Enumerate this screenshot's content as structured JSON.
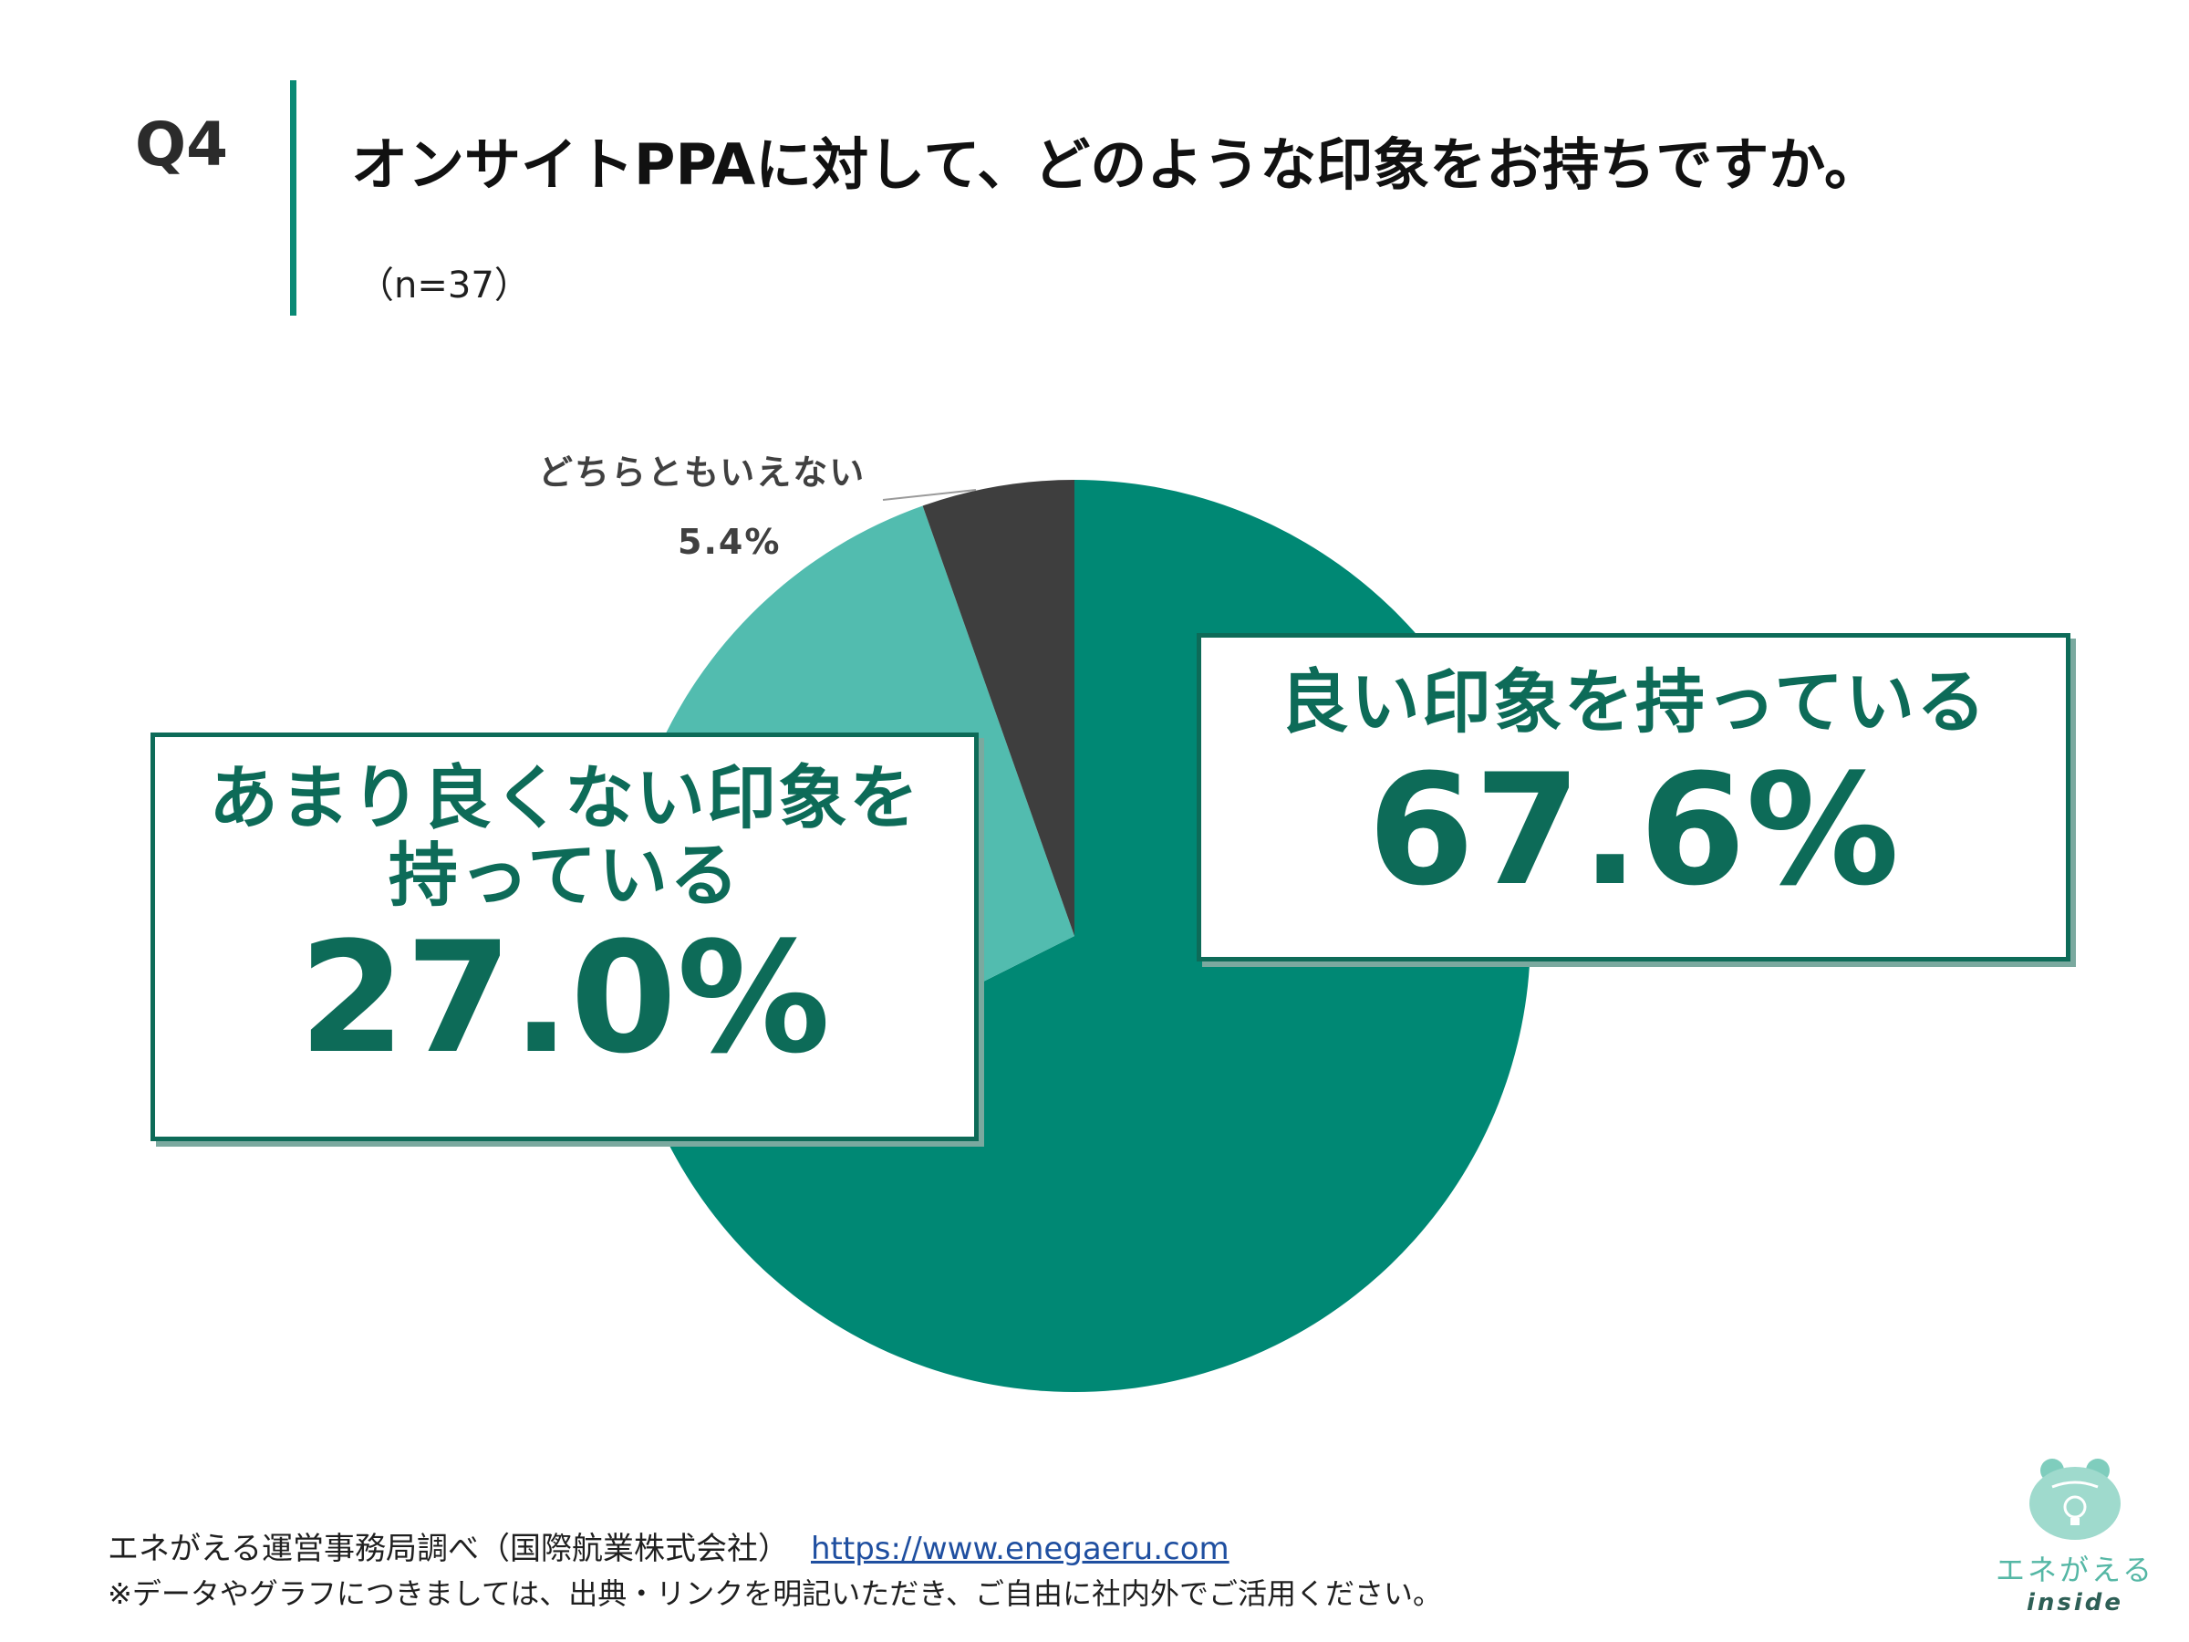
{
  "header": {
    "question_label": "Q4",
    "title": "オンサイトPPAに対して、どのような印象をお持ちですか。",
    "sample": "（n=37）"
  },
  "chart_data": {
    "type": "pie",
    "title": "オンサイトPPAに対して、どのような印象をお持ちですか。",
    "categories": [
      "良い印象を持っている",
      "あまり良くない印象を持っている",
      "どちらともいえない"
    ],
    "values": [
      67.6,
      27.0,
      5.4
    ],
    "value_labels": [
      "67.6%",
      "27.0%",
      "5.4%"
    ],
    "unit": "%",
    "colors": [
      "#008874",
      "#52bcaf",
      "#3e3e3e"
    ],
    "start_angle_deg": 0,
    "direction": "clockwise"
  },
  "labels": {
    "good_category": "良い印象を持っている",
    "good_value": "67.6%",
    "notgood_category": "あまり良くない印象を持っている",
    "notgood_value": "27.0%",
    "neutral_category": "どちらともいえない",
    "neutral_value": "5.4%"
  },
  "footer": {
    "source": "エネがえる運営事務局調べ（国際航業株式会社）",
    "url": "https://www.enegaeru.com",
    "note": "※データやグラフにつきましては、出典・リンクを明記いただき、ご自由に社内外でご活用ください。"
  },
  "logo": {
    "name": "エネがえる",
    "sub": "inside",
    "icon": "frog-bulb-logo-icon"
  }
}
